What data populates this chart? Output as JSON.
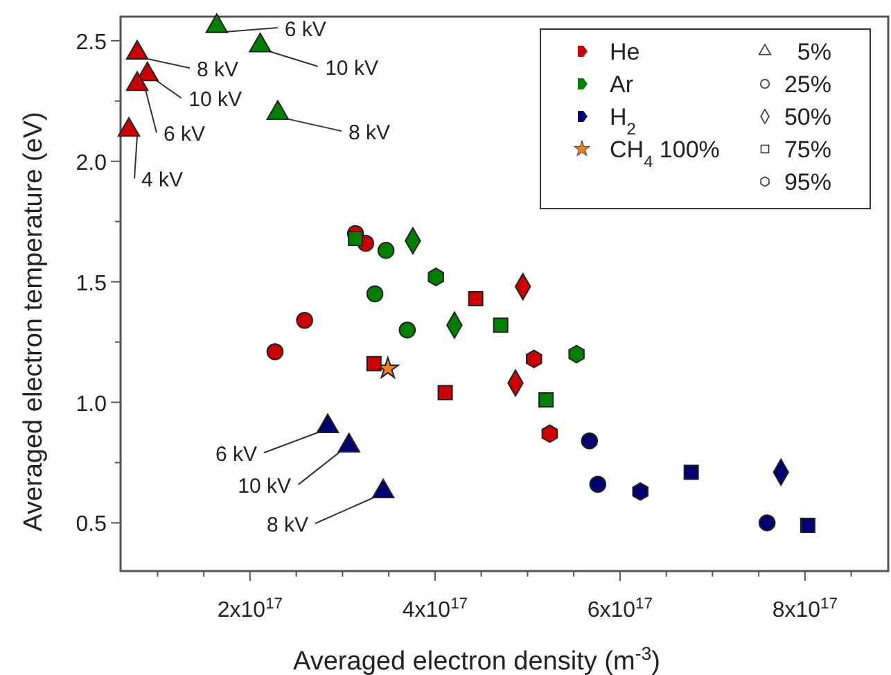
{
  "chart_data": {
    "type": "scatter",
    "xlabel": "Averaged electron density (m$^{-3}$)",
    "ylabel": "Averaged electron temperature (eV)",
    "xlim": [
      6e+16,
      8.9e+17
    ],
    "ylim": [
      0.3,
      2.6
    ],
    "xticks": [
      {
        "value": 1e+17,
        "label": null
      },
      {
        "value": 1.5e+17,
        "label": null
      },
      {
        "value": 2e+17,
        "label": "2x10$^{17}$"
      },
      {
        "value": 2.5e+17,
        "label": null
      },
      {
        "value": 3e+17,
        "label": null
      },
      {
        "value": 3.5e+17,
        "label": null
      },
      {
        "value": 4e+17,
        "label": "4x10$^{17}$"
      },
      {
        "value": 4.5e+17,
        "label": null
      },
      {
        "value": 5e+17,
        "label": null
      },
      {
        "value": 5.5e+17,
        "label": null
      },
      {
        "value": 6e+17,
        "label": "6x10$^{17}$"
      },
      {
        "value": 6.5e+17,
        "label": null
      },
      {
        "value": 7e+17,
        "label": null
      },
      {
        "value": 7.5e+17,
        "label": null
      },
      {
        "value": 8e+17,
        "label": "8x10$^{17}$"
      },
      {
        "value": 8.5e+17,
        "label": null
      }
    ],
    "yticks": [
      {
        "value": 0.75,
        "label": null
      },
      {
        "value": 1.25,
        "label": null
      },
      {
        "value": 1.75,
        "label": null
      },
      {
        "value": 2.25,
        "label": null
      },
      0.5,
      {
        "value": 1,
        "label": "1.0"
      },
      1.5,
      {
        "value": 2,
        "label": "2.0"
      },
      2.5
    ],
    "legend": "top right",
    "grid": false,
    "series": [
      {
        "name": "He",
        "color": "#cc0000",
        "marker": "triangle",
        "x": [
          6.9e+16,
          7.8e+16,
          8.9e+16,
          7.8e+16
        ],
        "values": [
          2.13,
          2.45,
          2.36,
          2.32
        ]
      },
      {
        "name": "Ar",
        "color": "#008000",
        "marker": "triangle",
        "x": [
          1.64e+17,
          2.11e+17,
          2.3e+17
        ],
        "values": [
          2.56,
          2.48,
          2.2
        ]
      },
      {
        "name": "H$_{2}$",
        "color": "#000070",
        "marker": "triangle",
        "x": [
          2.84e+17,
          3.07e+17,
          3.44e+17
        ],
        "values": [
          0.9,
          0.82,
          0.63
        ]
      },
      {
        "name": "CH$_{4}$ 100%",
        "color": "#f08020",
        "marker": "star",
        "x": [
          3.49e+17
        ],
        "values": [
          1.14
        ]
      },
      {
        "color": "#cc0000",
        "marker": "circle",
        "x": [
          2.27e+17,
          2.59e+17,
          3.14e+17,
          3.25e+17
        ],
        "values": [
          1.21,
          1.34,
          1.7,
          1.66
        ]
      },
      {
        "color": "#008000",
        "marker": "circle",
        "x": [
          3.47e+17,
          3.35e+17,
          3.7e+17
        ],
        "values": [
          1.63,
          1.45,
          1.3
        ]
      },
      {
        "color": "#000070",
        "marker": "circle",
        "x": [
          5.67e+17,
          5.76e+17,
          7.59e+17
        ],
        "values": [
          0.84,
          0.66,
          0.5
        ]
      },
      {
        "color": "#008000",
        "marker": "diamond",
        "x": [
          3.76e+17,
          4.21e+17
        ],
        "values": [
          1.67,
          1.32
        ]
      },
      {
        "color": "#cc0000",
        "marker": "diamond",
        "x": [
          4.95e+17,
          4.87e+17
        ],
        "values": [
          1.48,
          1.08
        ]
      },
      {
        "color": "#000070",
        "marker": "diamond",
        "x": [
          7.74e+17
        ],
        "values": [
          0.71
        ]
      },
      {
        "color": "#008000",
        "marker": "square",
        "x": [
          3.14e+17,
          4.71e+17,
          5.2e+17
        ],
        "values": [
          1.68,
          1.32,
          1.01
        ]
      },
      {
        "color": "#cc0000",
        "marker": "square",
        "x": [
          4.44e+17,
          3.34e+17,
          4.11e+17
        ],
        "values": [
          1.43,
          1.16,
          1.04
        ]
      },
      {
        "color": "#000070",
        "marker": "square",
        "x": [
          6.77e+17,
          8.03e+17
        ],
        "values": [
          0.71,
          0.49
        ]
      },
      {
        "color": "#008000",
        "x": [
          4.01e+17,
          5.53e+17
        ],
        "values": [
          1.52,
          1.2
        ]
      },
      {
        "color": "#cc0000",
        "x": [
          5.07e+17,
          5.24e+17
        ],
        "values": [
          1.18,
          0.87
        ]
      },
      {
        "color": "#000070",
        "x": [
          6.22e+17
        ],
        "values": [
          0.63
        ]
      }
    ],
    "annotations": [
      "5%",
      "25%",
      "50%",
      "75%",
      "95%",
      {
        "text": "4 kV",
        "x": 6.9e+16,
        "y": 2.13
      },
      {
        "text": "8 kV",
        "x": 7.8e+16,
        "y": 2.45
      },
      {
        "text": "10 kV",
        "x": 8.9e+16,
        "y": 2.36
      },
      {
        "text": "6 kV",
        "x": 7.8e+16,
        "y": 2.32
      },
      {
        "text": "6 kV",
        "x": 1.64e+17,
        "y": 2.56
      },
      {
        "text": "10 kV",
        "x": 2.11e+17,
        "y": 2.48
      },
      {
        "text": "8 kV",
        "x": 2.3e+17,
        "y": 2.2
      },
      {
        "text": "6 kV",
        "x": 2.84e+17,
        "y": 0.9
      },
      {
        "text": "10 kV",
        "x": 3.07e+17,
        "y": 0.82
      },
      {
        "text": "8 kV",
        "x": 3.44e+17,
        "y": 0.63
      }
    ]
  }
}
